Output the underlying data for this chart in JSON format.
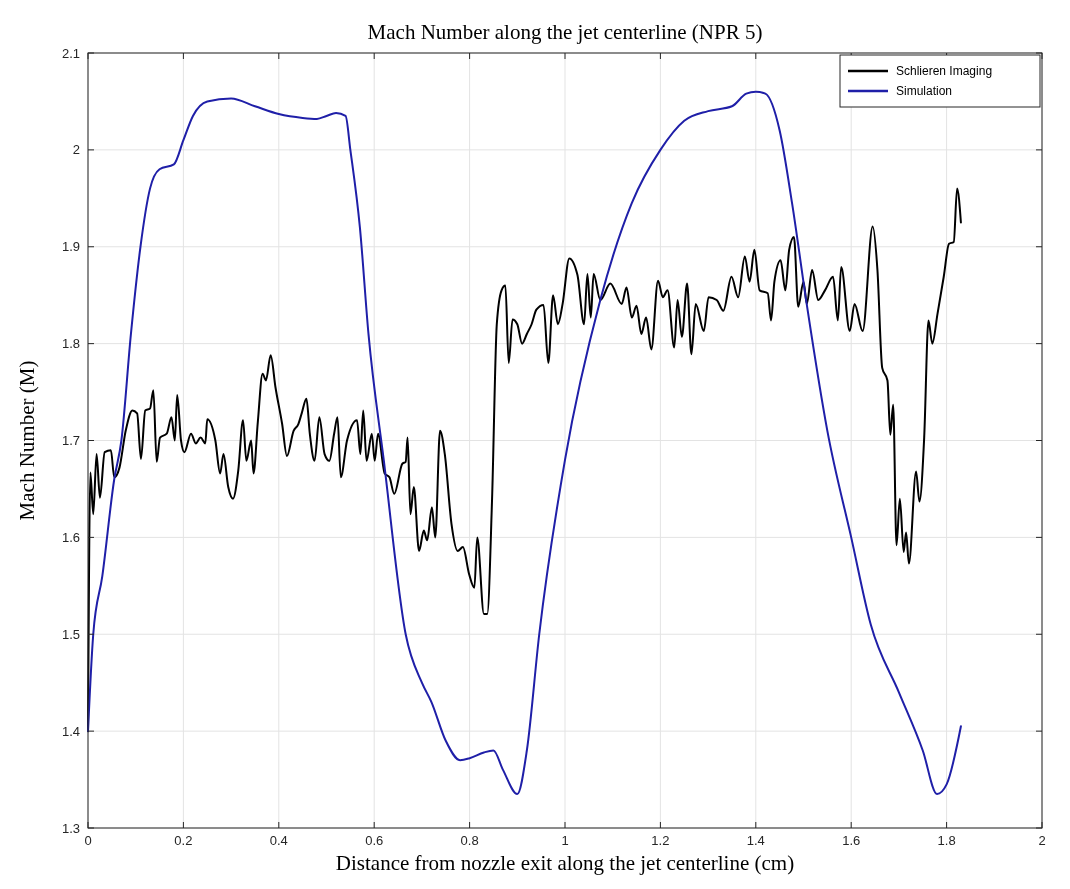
{
  "chart_data": {
    "type": "line",
    "title": "Mach Number along the jet centerline (NPR 5)",
    "xlabel": "Distance from nozzle exit along the jet centerline (cm)",
    "ylabel": "Mach Number (M)",
    "xlim": [
      0,
      2
    ],
    "ylim": [
      1.3,
      2.1
    ],
    "xticks": [
      0,
      0.2,
      0.4,
      0.6,
      0.8,
      1,
      1.2,
      1.4,
      1.6,
      1.8,
      2
    ],
    "yticks": [
      1.3,
      1.4,
      1.5,
      1.6,
      1.7,
      1.8,
      1.9,
      2,
      2.1
    ],
    "grid": true,
    "legend": "top right",
    "line_style": "solid",
    "marker": "none",
    "series": [
      {
        "name": "Schlieren Imaging",
        "color": "#000000",
        "x": [
          0,
          0.005,
          0.011,
          0.018,
          0.025,
          0.035,
          0.048,
          0.055,
          0.066,
          0.079,
          0.093,
          0.103,
          0.111,
          0.12,
          0.13,
          0.137,
          0.144,
          0.151,
          0.165,
          0.175,
          0.182,
          0.187,
          0.195,
          0.202,
          0.216,
          0.226,
          0.236,
          0.246,
          0.25,
          0.267,
          0.277,
          0.284,
          0.294,
          0.304,
          0.315,
          0.325,
          0.332,
          0.342,
          0.347,
          0.356,
          0.366,
          0.373,
          0.383,
          0.393,
          0.407,
          0.417,
          0.431,
          0.441,
          0.448,
          0.458,
          0.465,
          0.475,
          0.485,
          0.496,
          0.506,
          0.516,
          0.523,
          0.53,
          0.543,
          0.564,
          0.571,
          0.577,
          0.584,
          0.595,
          0.601,
          0.608,
          0.622,
          0.632,
          0.642,
          0.659,
          0.666,
          0.67,
          0.676,
          0.683,
          0.694,
          0.704,
          0.711,
          0.721,
          0.728,
          0.738,
          0.748,
          0.762,
          0.775,
          0.786,
          0.799,
          0.81,
          0.816,
          0.83,
          0.837,
          0.847,
          0.857,
          0.867,
          0.875,
          0.882,
          0.89,
          0.9,
          0.91,
          0.92,
          0.93,
          0.94,
          0.955,
          0.965,
          0.975,
          0.985,
          0.995,
          1.009,
          1.026,
          1.04,
          1.047,
          1.054,
          1.06,
          1.074,
          1.095,
          1.119,
          1.129,
          1.14,
          1.15,
          1.16,
          1.17,
          1.181,
          1.195,
          1.205,
          1.215,
          1.229,
          1.236,
          1.245,
          1.256,
          1.265,
          1.274,
          1.291,
          1.301,
          1.318,
          1.332,
          1.349,
          1.363,
          1.377,
          1.387,
          1.397,
          1.408,
          1.425,
          1.432,
          1.439,
          1.452,
          1.462,
          1.47,
          1.48,
          1.489,
          1.5,
          1.507,
          1.518,
          1.531,
          1.545,
          1.562,
          1.572,
          1.579,
          1.597,
          1.607,
          1.624,
          1.645,
          1.655,
          1.665,
          1.676,
          1.682,
          1.688,
          1.695,
          1.702,
          1.71,
          1.715,
          1.721,
          1.736,
          1.743,
          1.753,
          1.762,
          1.77,
          1.781,
          1.794,
          1.805,
          1.815,
          1.822,
          1.83
        ],
        "values": [
          1.4,
          1.667,
          1.624,
          1.686,
          1.641,
          1.688,
          1.69,
          1.662,
          1.672,
          1.71,
          1.731,
          1.728,
          1.681,
          1.731,
          1.733,
          1.752,
          1.678,
          1.703,
          1.707,
          1.724,
          1.7,
          1.747,
          1.7,
          1.688,
          1.707,
          1.697,
          1.703,
          1.697,
          1.722,
          1.7,
          1.666,
          1.686,
          1.652,
          1.64,
          1.669,
          1.721,
          1.679,
          1.7,
          1.666,
          1.719,
          1.769,
          1.762,
          1.788,
          1.755,
          1.717,
          1.684,
          1.71,
          1.717,
          1.728,
          1.743,
          1.707,
          1.679,
          1.724,
          1.686,
          1.679,
          1.707,
          1.724,
          1.662,
          1.7,
          1.721,
          1.686,
          1.731,
          1.679,
          1.707,
          1.679,
          1.707,
          1.666,
          1.662,
          1.645,
          1.676,
          1.678,
          1.703,
          1.624,
          1.652,
          1.586,
          1.607,
          1.597,
          1.631,
          1.6,
          1.71,
          1.686,
          1.614,
          1.586,
          1.59,
          1.562,
          1.548,
          1.6,
          1.521,
          1.521,
          1.638,
          1.82,
          1.855,
          1.86,
          1.78,
          1.825,
          1.82,
          1.8,
          1.81,
          1.82,
          1.835,
          1.84,
          1.78,
          1.85,
          1.82,
          1.841,
          1.888,
          1.871,
          1.82,
          1.872,
          1.827,
          1.872,
          1.845,
          1.862,
          1.841,
          1.858,
          1.827,
          1.839,
          1.81,
          1.827,
          1.794,
          1.865,
          1.848,
          1.855,
          1.796,
          1.845,
          1.807,
          1.862,
          1.789,
          1.841,
          1.813,
          1.848,
          1.845,
          1.834,
          1.869,
          1.848,
          1.89,
          1.864,
          1.897,
          1.855,
          1.852,
          1.824,
          1.864,
          1.886,
          1.855,
          1.897,
          1.91,
          1.838,
          1.864,
          1.841,
          1.876,
          1.845,
          1.855,
          1.869,
          1.824,
          1.879,
          1.813,
          1.841,
          1.813,
          1.921,
          1.876,
          1.775,
          1.762,
          1.706,
          1.737,
          1.592,
          1.64,
          1.585,
          1.605,
          1.573,
          1.668,
          1.637,
          1.703,
          1.824,
          1.8,
          1.831,
          1.869,
          1.903,
          1.905,
          1.96,
          1.925
        ]
      },
      {
        "name": "Simulation",
        "color": "#1f1fa8",
        "x": [
          0,
          0.011,
          0.03,
          0.055,
          0.07,
          0.09,
          0.11,
          0.13,
          0.15,
          0.18,
          0.2,
          0.22,
          0.25,
          0.3,
          0.35,
          0.4,
          0.45,
          0.48,
          0.5,
          0.52,
          0.54,
          0.55,
          0.57,
          0.588,
          0.62,
          0.666,
          0.7,
          0.72,
          0.75,
          0.78,
          0.8,
          0.83,
          0.85,
          0.87,
          0.9,
          0.92,
          0.946,
          1,
          1.074,
          1.14,
          1.2,
          1.25,
          1.3,
          1.35,
          1.38,
          1.4,
          1.42,
          1.45,
          1.476,
          1.507,
          1.55,
          1.6,
          1.641,
          1.7,
          1.75,
          1.78,
          1.8,
          1.83
        ],
        "values": [
          1.4,
          1.5,
          1.56,
          1.66,
          1.7,
          1.81,
          1.9,
          1.96,
          1.98,
          1.985,
          2.01,
          2.035,
          2.05,
          2.053,
          2.045,
          2.037,
          2.033,
          2.032,
          2.035,
          2.038,
          2.035,
          2.0,
          1.92,
          1.81,
          1.68,
          1.5,
          1.45,
          1.43,
          1.39,
          1.37,
          1.372,
          1.378,
          1.38,
          1.36,
          1.335,
          1.38,
          1.5,
          1.68,
          1.845,
          1.945,
          2.0,
          2.03,
          2.04,
          2.045,
          2.058,
          2.06,
          2.058,
          2.02,
          1.945,
          1.84,
          1.71,
          1.6,
          1.51,
          1.44,
          1.38,
          1.335,
          1.345,
          1.405
        ]
      }
    ]
  }
}
